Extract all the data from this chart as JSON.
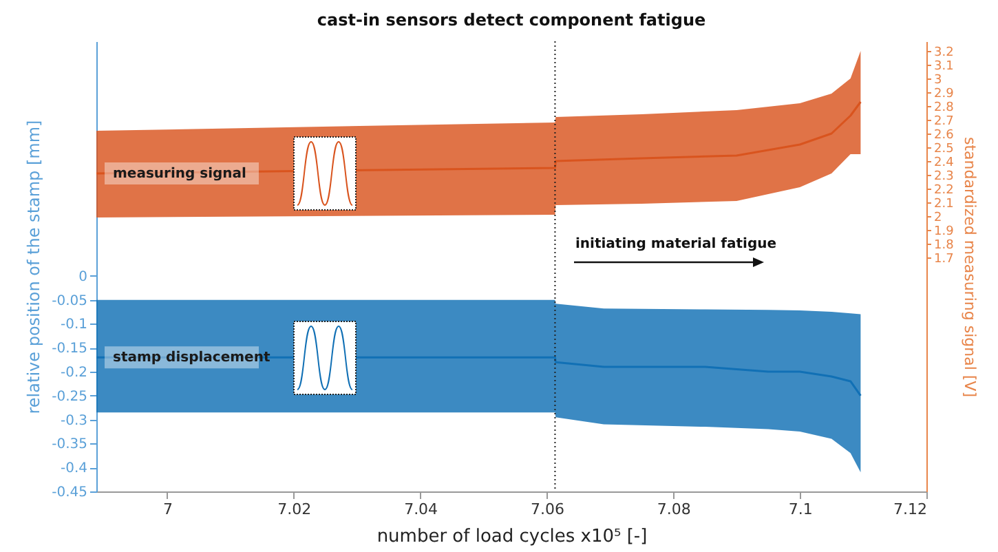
{
  "chart_data": {
    "type": "line",
    "title": "cast-in sensors detect component fatigue",
    "xlabel": "number of load cycles  x10⁵ [-]",
    "ylabel": "relative position of the stamp [mm]",
    "y2label": "standardized measuring signal [V]",
    "series": [
      {
        "name": "measuring signal",
        "axis": "y2",
        "color": "#d9541e",
        "x": [
          6.9888,
          7.0613,
          7.0614,
          7.075,
          7.09,
          7.1,
          7.105,
          7.108,
          7.1088,
          7.1096
        ],
        "values": [
          2.31,
          2.35,
          2.4,
          2.42,
          2.44,
          2.52,
          2.6,
          2.73,
          2.78,
          2.83
        ],
        "upper": [
          2.62,
          2.68,
          2.72,
          2.74,
          2.77,
          2.82,
          2.89,
          3.0,
          3.1,
          3.2
        ],
        "lower": [
          1.99,
          2.01,
          2.08,
          2.09,
          2.11,
          2.21,
          2.31,
          2.45,
          2.45,
          2.45
        ]
      },
      {
        "name": "stamp displacement",
        "color": "#1170b5",
        "x": [
          6.9888,
          7.0613,
          7.0614,
          7.069,
          7.085,
          7.095,
          7.1,
          7.105,
          7.108,
          7.1096
        ],
        "values": [
          -0.17,
          -0.17,
          -0.18,
          -0.19,
          -0.19,
          -0.2,
          -0.2,
          -0.21,
          -0.22,
          -0.25
        ],
        "upper": [
          -0.05,
          -0.05,
          -0.058,
          -0.068,
          -0.07,
          -0.071,
          -0.072,
          -0.075,
          -0.078,
          -0.08
        ],
        "lower": [
          -0.285,
          -0.285,
          -0.295,
          -0.31,
          -0.315,
          -0.32,
          -0.325,
          -0.34,
          -0.37,
          -0.41
        ]
      }
    ],
    "xlim": [
      6.9888,
      7.12
    ],
    "xticks": [
      7,
      7.02,
      7.04,
      7.06,
      7.08,
      7.1,
      7.12
    ],
    "ylim": [
      -0.45,
      0.49
    ],
    "yticks": [
      -0.45,
      -0.4,
      -0.35,
      -0.3,
      -0.25,
      -0.2,
      -0.15,
      -0.1,
      -0.05,
      0
    ],
    "y2lim": [
      0,
      3.27
    ],
    "y2ticks": [
      1.7,
      1.8,
      1.9,
      2,
      2.1,
      2.2,
      2.3,
      2.4,
      2.5,
      2.6,
      2.7,
      2.8,
      2.9,
      3,
      3.1,
      3.2
    ],
    "ref_lines": [
      {
        "axis": "x",
        "value": 7.0613,
        "color": "#222222",
        "line_style": "dotted"
      }
    ],
    "annotations": [
      "initiating material fatigue"
    ],
    "grid": false
  }
}
